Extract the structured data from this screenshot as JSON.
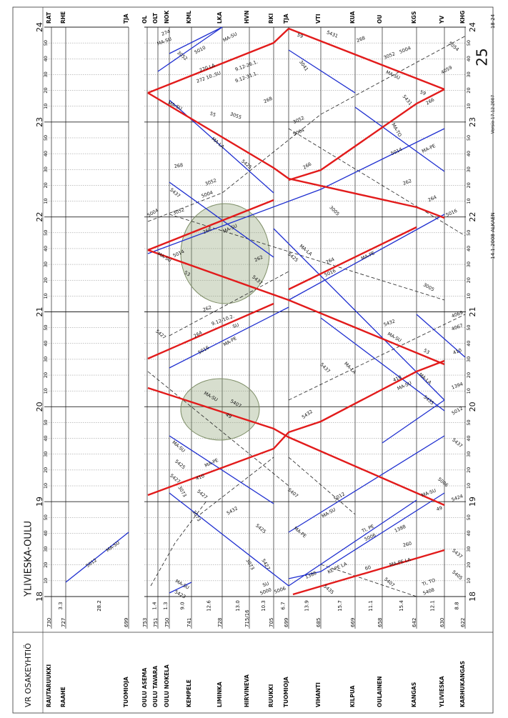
{
  "header": {
    "company": "VR OSAKEYHTIÖ",
    "route": "YLIVIESKA-OULU",
    "sheet": "18-24",
    "page": "25",
    "version": "Versio 17.12.2007",
    "valid_from": "14.1.2008 ALKAEN"
  },
  "stations": [
    {
      "code": "RAT",
      "name": "RAUTARUUKKI",
      "km": "730"
    },
    {
      "code": "RHE",
      "name": "RAAHE",
      "km": "727"
    },
    {
      "code": "TJA",
      "name": "TUOMIOJA",
      "km": "699"
    },
    {
      "code": "OL",
      "name": "OULU ASEMA",
      "km": "753"
    },
    {
      "code": "OLT",
      "name": "OULU TAVARA",
      "km": "751"
    },
    {
      "code": "NOK",
      "name": "OULU NOKELA",
      "km": "750"
    },
    {
      "code": "KML",
      "name": "KEMPELE",
      "km": "741"
    },
    {
      "code": "LKA",
      "name": "LIMINKA",
      "km": "728"
    },
    {
      "code": "HVN",
      "name": "HIRVINEVA",
      "km": "715/16"
    },
    {
      "code": "RKI",
      "name": "RUUKKI",
      "km": "705"
    },
    {
      "code": "TJA",
      "name": "TUOMIOJA",
      "km": "699"
    },
    {
      "code": "VTI",
      "name": "VIHANTI",
      "km": "685"
    },
    {
      "code": "KUA",
      "name": "KILPUA",
      "km": "669"
    },
    {
      "code": "OU",
      "name": "OULAINEN",
      "km": "658"
    },
    {
      "code": "KGS",
      "name": "KANGAS",
      "km": "642"
    },
    {
      "code": "YV",
      "name": "YLIVIESKA",
      "km": "630"
    },
    {
      "code": "KHG",
      "name": "KARHUKANGAS",
      "km": "622"
    }
  ],
  "distances": [
    "3.3",
    "28.2",
    "1.4",
    "1.3",
    "9.0",
    "12.6",
    "13.0",
    "10.3",
    "6.7",
    "13.9",
    "15.7",
    "11.1",
    "15.4",
    "12.1",
    "8.8"
  ],
  "hours": [
    "18",
    "19",
    "20",
    "21",
    "22",
    "23",
    "24"
  ],
  "minutes": [
    "10",
    "20",
    "30",
    "40",
    "50"
  ],
  "train_labels": [
    "5012",
    "MA-SU",
    "274",
    "MA-SU",
    "5010",
    "MA-SU",
    "3052",
    "270 LA",
    "272 10.,SU",
    "9.12-26.1.",
    "9.12-31.1.",
    "59",
    "5431",
    "268",
    "3052",
    "5004",
    "3041",
    "MA-SU",
    "5431",
    "59",
    "266",
    "4059",
    "5054",
    "268",
    "MA-SU",
    "55",
    "3055",
    "3052",
    "5004",
    "MA-TO",
    "5014",
    "MA-PE",
    "MA-LA",
    "5425",
    "268",
    "3052",
    "5004",
    "5437",
    "266",
    "262",
    "264",
    "5016",
    "3005",
    "5004",
    "3052",
    "266",
    "MA-SU",
    "5014",
    "MA-SU",
    "53",
    "262",
    "5437",
    "5425",
    "MA-LA",
    "264",
    "5016",
    "MA-PE",
    "3005",
    "262",
    "9.12-10.2.",
    "SU",
    "5427",
    "264",
    "5016",
    "MA-PE",
    "5432",
    "MA-SU",
    "53",
    "4069",
    "4067",
    "410",
    "5437",
    "MA-LA",
    "410",
    "MA-SU",
    "MA-LA",
    "1394",
    "5435",
    "5012",
    "MA-SU",
    "5407",
    "49",
    "5432",
    "5437",
    "MA-SU",
    "5425",
    "MA-PE",
    "5427",
    "3073",
    "410",
    "5427",
    "3073",
    "5432",
    "5425",
    "5407",
    "5012",
    "MA-SU",
    "5006",
    "MA-SU",
    "49",
    "5424",
    "MA-PE",
    "3073",
    "5427",
    "SU",
    "5000",
    "5006",
    "1388",
    "KE-PE LA",
    "60",
    "MA-PE LA",
    "260",
    "TI, PE",
    "5006",
    "1388",
    "5437",
    "5405",
    "TI, TO",
    "5408",
    "MA-SU",
    "5423",
    "5407",
    "5435"
  ]
}
